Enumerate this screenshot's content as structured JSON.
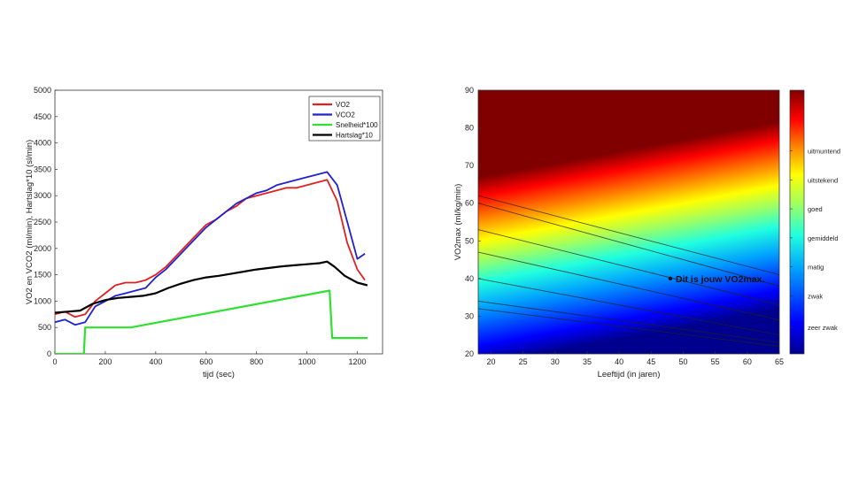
{
  "chart_data": [
    {
      "type": "line",
      "xlabel": "tijd (sec)",
      "ylabel": "VO2 en VCO2 (ml/min), Hartslag*10 (sl/min)",
      "xlim": [
        0,
        1300
      ],
      "ylim": [
        0,
        5000
      ],
      "xticks": [
        0,
        200,
        400,
        600,
        800,
        1000,
        1200
      ],
      "yticks": [
        0,
        500,
        1000,
        1500,
        2000,
        2500,
        3000,
        3500,
        4000,
        4500,
        5000
      ],
      "legend_position": "top-right",
      "series": [
        {
          "name": "VO2",
          "color": "#e02020",
          "x": [
            0,
            40,
            80,
            120,
            160,
            200,
            240,
            280,
            320,
            360,
            400,
            440,
            480,
            520,
            560,
            600,
            640,
            680,
            720,
            760,
            800,
            840,
            880,
            920,
            960,
            1000,
            1040,
            1080,
            1120,
            1160,
            1200,
            1230
          ],
          "y": [
            750,
            800,
            700,
            750,
            1000,
            1150,
            1300,
            1350,
            1350,
            1400,
            1500,
            1650,
            1850,
            2050,
            2250,
            2450,
            2550,
            2700,
            2800,
            2950,
            3000,
            3050,
            3100,
            3150,
            3150,
            3200,
            3250,
            3300,
            2900,
            2100,
            1600,
            1400
          ]
        },
        {
          "name": "VCO2",
          "color": "#2020d0",
          "x": [
            0,
            40,
            80,
            120,
            160,
            200,
            240,
            280,
            320,
            360,
            400,
            440,
            480,
            520,
            560,
            600,
            640,
            680,
            720,
            760,
            800,
            840,
            880,
            920,
            960,
            1000,
            1040,
            1080,
            1120,
            1160,
            1200,
            1230
          ],
          "y": [
            600,
            650,
            550,
            600,
            900,
            1000,
            1100,
            1150,
            1200,
            1250,
            1450,
            1600,
            1800,
            2000,
            2200,
            2400,
            2550,
            2700,
            2850,
            2950,
            3050,
            3100,
            3200,
            3250,
            3300,
            3350,
            3400,
            3450,
            3200,
            2500,
            1800,
            1900
          ]
        },
        {
          "name": "Snelheid*100",
          "color": "#30e030",
          "x": [
            0,
            115,
            120,
            300,
            1090,
            1100,
            1240
          ],
          "y": [
            0,
            0,
            500,
            500,
            1200,
            300,
            300
          ]
        },
        {
          "name": "Hartslag*10",
          "color": "#000000",
          "x": [
            0,
            50,
            100,
            150,
            200,
            250,
            300,
            350,
            400,
            450,
            500,
            550,
            600,
            650,
            700,
            750,
            800,
            850,
            900,
            950,
            1000,
            1050,
            1080,
            1110,
            1150,
            1200,
            1240
          ],
          "y": [
            780,
            800,
            820,
            950,
            1020,
            1060,
            1080,
            1100,
            1150,
            1250,
            1330,
            1400,
            1450,
            1480,
            1520,
            1560,
            1600,
            1630,
            1660,
            1680,
            1700,
            1720,
            1750,
            1650,
            1480,
            1350,
            1300
          ]
        }
      ]
    },
    {
      "type": "heatmap",
      "xlabel": "Leeftijd (in jaren)",
      "ylabel": "VO2max (ml/kg/min)",
      "xlim": [
        18,
        65
      ],
      "ylim": [
        20,
        90
      ],
      "xticks": [
        20,
        25,
        30,
        35,
        40,
        45,
        50,
        55,
        60,
        65
      ],
      "yticks": [
        20,
        30,
        40,
        50,
        60,
        70,
        80,
        90
      ],
      "colorbar_labels": [
        "zeer zwak",
        "zwak",
        "matig",
        "gemiddeld",
        "goed",
        "uitstekend",
        "uitmuntend"
      ],
      "contour_lines": [
        {
          "x": [
            18,
            65
          ],
          "y": [
            62,
            41
          ]
        },
        {
          "x": [
            18,
            65
          ],
          "y": [
            60,
            38
          ]
        },
        {
          "x": [
            18,
            65
          ],
          "y": [
            53,
            33
          ]
        },
        {
          "x": [
            18,
            65
          ],
          "y": [
            47,
            29
          ]
        },
        {
          "x": [
            18,
            65
          ],
          "y": [
            40,
            25
          ]
        },
        {
          "x": [
            18,
            65
          ],
          "y": [
            34,
            23
          ]
        },
        {
          "x": [
            18,
            65
          ],
          "y": [
            32,
            22
          ]
        }
      ],
      "marker": {
        "x": 48,
        "y": 40,
        "label": "Dit is jouw VO2max."
      }
    }
  ]
}
